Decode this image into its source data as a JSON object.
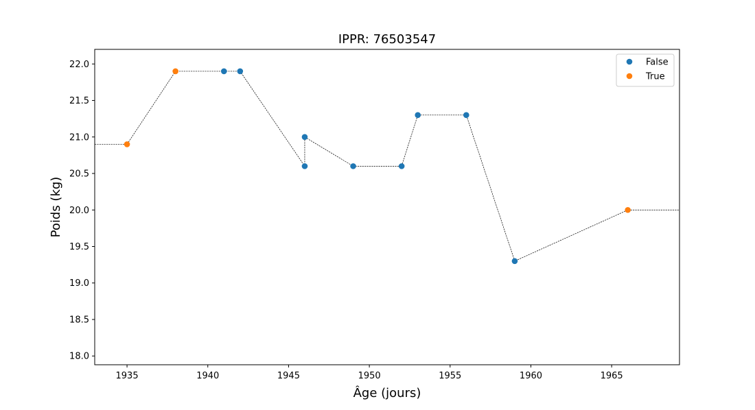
{
  "chart_data": {
    "type": "scatter",
    "title": "IPPR: 76503547",
    "xlabel": "Âge (jours)",
    "ylabel": "Poids (kg)",
    "xlim": [
      1933,
      1969.2
    ],
    "ylim": [
      17.88,
      22.2
    ],
    "xticks": [
      1935,
      1940,
      1945,
      1950,
      1955,
      1960,
      1965
    ],
    "yticks": [
      18.0,
      18.5,
      19.0,
      19.5,
      20.0,
      20.5,
      21.0,
      21.5,
      22.0
    ],
    "grid": false,
    "legend_position": "top-right",
    "line": {
      "style": "dashed",
      "color": "#000000",
      "x": [
        1933,
        1935,
        1938,
        1941,
        1942,
        1946,
        1946,
        1949,
        1952,
        1953,
        1956,
        1959,
        1966,
        1969.2
      ],
      "y": [
        20.9,
        20.9,
        21.9,
        21.9,
        21.9,
        20.6,
        21.0,
        20.6,
        20.6,
        21.3,
        21.3,
        19.3,
        20.0,
        20.0
      ]
    },
    "series": [
      {
        "name": "False",
        "color": "#1f77b4",
        "points": [
          {
            "x": 1941,
            "y": 21.9
          },
          {
            "x": 1942,
            "y": 21.9
          },
          {
            "x": 1946,
            "y": 20.6
          },
          {
            "x": 1946,
            "y": 21.0
          },
          {
            "x": 1949,
            "y": 20.6
          },
          {
            "x": 1952,
            "y": 20.6
          },
          {
            "x": 1953,
            "y": 21.3
          },
          {
            "x": 1956,
            "y": 21.3
          },
          {
            "x": 1959,
            "y": 19.3
          }
        ]
      },
      {
        "name": "True",
        "color": "#ff7f0e",
        "points": [
          {
            "x": 1935,
            "y": 20.9
          },
          {
            "x": 1938,
            "y": 21.9
          },
          {
            "x": 1966,
            "y": 20.0
          }
        ]
      }
    ]
  }
}
